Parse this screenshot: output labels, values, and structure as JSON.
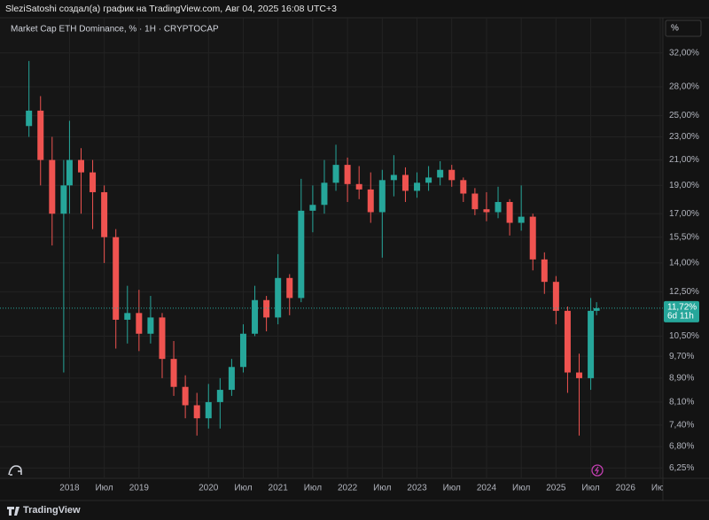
{
  "header": {
    "text": "SleziSatoshi создал(а) график на TradingView.com, Авг 04, 2025 16:08 UTC+3"
  },
  "chart_data": {
    "type": "candlestick",
    "title": "Market Cap ETH Dominance, % · 1H · CRYPTOCAP",
    "scale_button": "%",
    "x": [
      "2017-06",
      "2017-08",
      "2017-10",
      "2017-12",
      "2018-01",
      "2018-03",
      "2018-05",
      "2018-07",
      "2018-09",
      "2018-11",
      "2019-01",
      "2019-03",
      "2019-05",
      "2019-07",
      "2019-09",
      "2019-11",
      "2020-01",
      "2020-03",
      "2020-05",
      "2020-07",
      "2020-09",
      "2020-11",
      "2021-01",
      "2021-03",
      "2021-05",
      "2021-07",
      "2021-09",
      "2021-11",
      "2022-01",
      "2022-03",
      "2022-05",
      "2022-07",
      "2022-09",
      "2022-11",
      "2023-01",
      "2023-03",
      "2023-05",
      "2023-07",
      "2023-09",
      "2023-11",
      "2024-01",
      "2024-03",
      "2024-05",
      "2024-07",
      "2024-09",
      "2024-11",
      "2025-01",
      "2025-03",
      "2025-05",
      "2025-07",
      "2025-08"
    ],
    "open": [
      24,
      25.5,
      21,
      17,
      19,
      21,
      20,
      18.5,
      15.5,
      11.2,
      11.5,
      10.6,
      11.3,
      9.6,
      8.6,
      8.0,
      7.6,
      8.1,
      8.5,
      9.3,
      10.6,
      12.1,
      11.3,
      13.2,
      12.2,
      17.2,
      17.6,
      19.2,
      20.6,
      19.1,
      18.7,
      17.1,
      19.4,
      19.8,
      18.6,
      19.2,
      19.6,
      20.2,
      19.4,
      18.4,
      17.3,
      17.1,
      17.8,
      16.4,
      16.8,
      14.2,
      13.0,
      11.6,
      9.1,
      8.9,
      11.6
    ],
    "high": [
      31,
      27,
      23,
      21,
      24.5,
      22,
      21,
      19,
      16,
      12.8,
      12.6,
      12.3,
      11.5,
      10.3,
      9.0,
      8.4,
      8.7,
      8.9,
      9.6,
      11.0,
      12.8,
      12.3,
      14.5,
      13.4,
      19.5,
      19.0,
      21.0,
      22.3,
      21.2,
      20.5,
      20.0,
      20.2,
      21.4,
      20.4,
      20.0,
      20.5,
      20.9,
      20.6,
      19.6,
      18.8,
      18.5,
      18.9,
      18.0,
      19.0,
      17.0,
      14.6,
      13.3,
      11.8,
      9.8,
      12.2,
      12.0
    ],
    "low": [
      23,
      19,
      15,
      9.1,
      17,
      17,
      16,
      14,
      10,
      10.2,
      9.9,
      10.2,
      8.9,
      8.3,
      7.6,
      7.1,
      7.3,
      7.3,
      8.3,
      9.1,
      10.5,
      10.7,
      11.0,
      11.4,
      12.0,
      15.8,
      17.0,
      18.6,
      17.8,
      18.0,
      16.4,
      14.3,
      18.2,
      17.8,
      18.1,
      18.6,
      19.0,
      18.9,
      17.8,
      16.9,
      16.5,
      16.7,
      15.6,
      15.9,
      13.6,
      12.4,
      11.0,
      8.4,
      7.1,
      8.5,
      11.4
    ],
    "close": [
      25.5,
      21,
      17,
      19,
      21,
      20,
      18.5,
      15.5,
      11.2,
      11.5,
      10.6,
      11.3,
      9.6,
      8.6,
      8.0,
      7.6,
      8.1,
      8.5,
      9.3,
      10.6,
      12.1,
      11.3,
      13.2,
      12.2,
      17.2,
      17.6,
      19.2,
      20.6,
      19.1,
      18.7,
      17.1,
      19.4,
      19.8,
      18.6,
      19.2,
      19.6,
      20.2,
      19.4,
      18.4,
      17.3,
      17.1,
      17.8,
      16.4,
      16.8,
      14.2,
      13.0,
      11.6,
      9.1,
      8.9,
      11.6,
      11.72
    ],
    "up_color": "#26a69a",
    "down_color": "#ef5350",
    "log_scale": true,
    "grid": true,
    "ylim": [
      6,
      36.5
    ],
    "yticks": [
      {
        "value": 32,
        "label": "32,00%"
      },
      {
        "value": 28,
        "label": "28,00%"
      },
      {
        "value": 25,
        "label": "25,00%"
      },
      {
        "value": 23,
        "label": "23,00%"
      },
      {
        "value": 21,
        "label": "21,00%"
      },
      {
        "value": 19,
        "label": "19,00%"
      },
      {
        "value": 17,
        "label": "17,00%"
      },
      {
        "value": 15.5,
        "label": "15,50%"
      },
      {
        "value": 14,
        "label": "14,00%"
      },
      {
        "value": 12.5,
        "label": "12,50%"
      },
      {
        "value": 10.5,
        "label": "10,50%"
      },
      {
        "value": 9.7,
        "label": "9,70%"
      },
      {
        "value": 8.9,
        "label": "8,90%"
      },
      {
        "value": 8.1,
        "label": "8,10%"
      },
      {
        "value": 7.4,
        "label": "7,40%"
      },
      {
        "value": 6.8,
        "label": "6,80%"
      },
      {
        "value": 6.25,
        "label": "6,25%"
      }
    ],
    "xlim": [
      "2017-01",
      "2026-07"
    ],
    "xticks": [
      {
        "value": "2018-01",
        "label": "2018"
      },
      {
        "value": "2018-07",
        "label": "Июл"
      },
      {
        "value": "2019-01",
        "label": "2019"
      },
      {
        "value": "2020-01",
        "label": "2020"
      },
      {
        "value": "2020-07",
        "label": "Июл"
      },
      {
        "value": "2021-01",
        "label": "2021"
      },
      {
        "value": "2021-07",
        "label": "Июл"
      },
      {
        "value": "2022-01",
        "label": "2022"
      },
      {
        "value": "2022-07",
        "label": "Июл"
      },
      {
        "value": "2023-01",
        "label": "2023"
      },
      {
        "value": "2023-07",
        "label": "Июл"
      },
      {
        "value": "2024-01",
        "label": "2024"
      },
      {
        "value": "2024-07",
        "label": "Июл"
      },
      {
        "value": "2025-01",
        "label": "2025"
      },
      {
        "value": "2025-07",
        "label": "Июл"
      },
      {
        "value": "2026-01",
        "label": "2026"
      },
      {
        "value": "2026-07",
        "label": "Июл"
      }
    ],
    "last_label": "11,72%",
    "countdown": "6d 11h"
  },
  "footer": {
    "brand": "TradingView"
  }
}
